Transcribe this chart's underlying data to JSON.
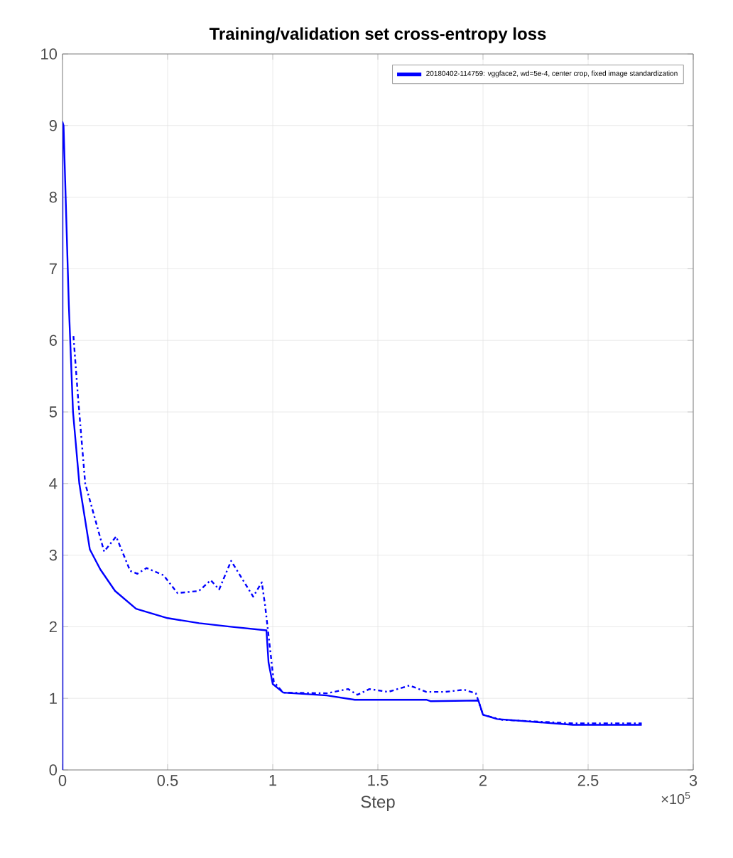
{
  "chart_data": {
    "type": "line",
    "title": "Training/validation set cross-entropy loss",
    "xlabel": "Step",
    "annotations": [
      "×10$^{5}$"
    ],
    "xlim": [
      0,
      3
    ],
    "ylim": [
      0,
      10
    ],
    "xticks": [
      0,
      0.5,
      1,
      1.5,
      2,
      2.5,
      3
    ],
    "yticks": [
      0,
      1,
      2,
      3,
      4,
      5,
      6,
      7,
      8,
      9,
      10
    ],
    "grid": true,
    "legend": "top right",
    "series": [
      {
        "name": "20180402-114759: vggface2, wd=5e-4, center crop, fixed image standardization",
        "color": "#0000ff",
        "line_style": "solid",
        "x": [
          0,
          0,
          0.005,
          0.015,
          0.03,
          0.05,
          0.08,
          0.13,
          0.18,
          0.25,
          0.35,
          0.5,
          0.65,
          0.8,
          0.97,
          0.98,
          1.0,
          1.05,
          1.257,
          1.39,
          1.73,
          1.75,
          1.978,
          2.0,
          2.068,
          2.428,
          2.755
        ],
        "values": [
          0,
          9.05,
          9.0,
          8.0,
          6.5,
          5.0,
          4.0,
          3.08,
          2.8,
          2.5,
          2.25,
          2.12,
          2.05,
          2.0,
          1.95,
          1.5,
          1.2,
          1.08,
          1.04,
          0.98,
          0.98,
          0.96,
          0.97,
          0.77,
          0.71,
          0.63,
          0.63
        ]
      },
      {
        "color": "#0000ff",
        "line_style": "dashed",
        "x": [
          0.052,
          0.074,
          0.108,
          0.198,
          0.255,
          0.322,
          0.356,
          0.4,
          0.48,
          0.547,
          0.649,
          0.705,
          0.745,
          0.802,
          0.907,
          0.948,
          0.964,
          1.005,
          1.05,
          1.257,
          1.358,
          1.403,
          1.46,
          1.549,
          1.651,
          1.73,
          1.82,
          1.91,
          1.966,
          2.0,
          2.09,
          2.428,
          2.755
        ],
        "values": [
          6.06,
          5.2,
          4.0,
          3.05,
          3.26,
          2.78,
          2.74,
          2.82,
          2.72,
          2.47,
          2.5,
          2.65,
          2.52,
          2.92,
          2.42,
          2.62,
          2.29,
          1.23,
          1.08,
          1.07,
          1.13,
          1.05,
          1.13,
          1.09,
          1.18,
          1.09,
          1.09,
          1.12,
          1.07,
          0.77,
          0.7,
          0.65,
          0.65
        ]
      }
    ]
  }
}
